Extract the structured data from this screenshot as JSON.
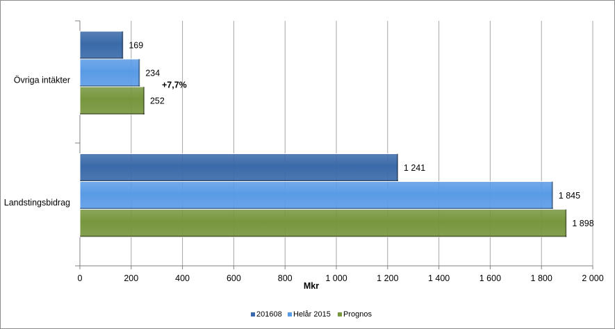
{
  "chart_data": {
    "type": "bar",
    "orientation": "horizontal",
    "categories": [
      "Övriga intäkter",
      "Landstingsbidrag"
    ],
    "series": [
      {
        "name": "201608",
        "values": [
          169,
          1241
        ],
        "labels": [
          "169",
          "1 241"
        ],
        "color": "#3a6aa9"
      },
      {
        "name": "Helår 2015",
        "values": [
          234,
          1845
        ],
        "labels": [
          "234",
          "1 845"
        ],
        "color": "#5a9be6"
      },
      {
        "name": "Prognos",
        "values": [
          252,
          1898
        ],
        "labels": [
          "252",
          "1 898"
        ],
        "color": "#77963e"
      }
    ],
    "xlim": [
      0,
      2000
    ],
    "xticks": [
      0,
      200,
      400,
      600,
      800,
      1000,
      1200,
      1400,
      1600,
      1800,
      2000
    ],
    "xtick_labels": [
      "0",
      "200",
      "400",
      "600",
      "800",
      "1 000",
      "1 200",
      "1 400",
      "1 600",
      "1 800",
      "2 000"
    ],
    "xlabel": "Mkr",
    "grid": "vertical",
    "legend_position": "bottom",
    "annotations": [
      {
        "text": "+7,7%",
        "category": "Övriga intäkter"
      }
    ]
  }
}
